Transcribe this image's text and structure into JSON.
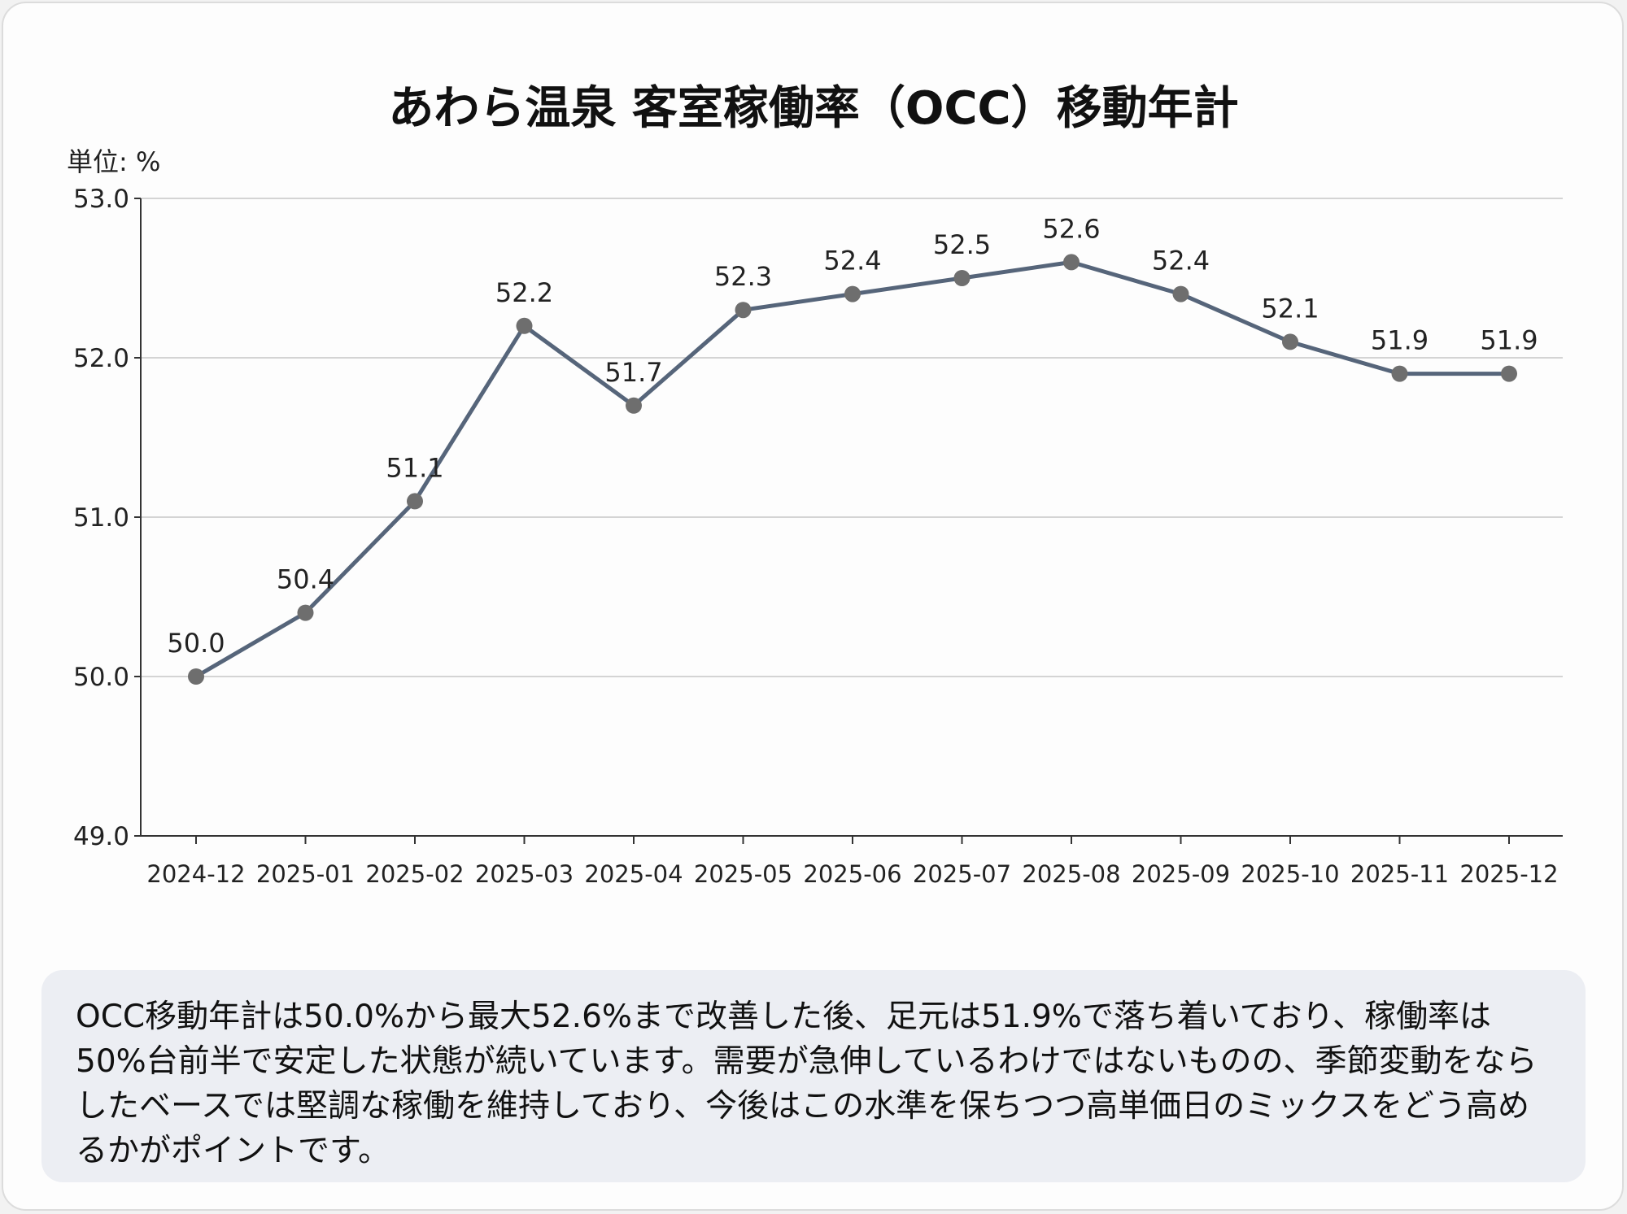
{
  "chart_data": {
    "type": "line",
    "title": "あわら温泉 客室稼働率（OCC）移動年計",
    "unit_label": "単位: %",
    "categories": [
      "2024-12",
      "2025-01",
      "2025-02",
      "2025-03",
      "2025-04",
      "2025-05",
      "2025-06",
      "2025-07",
      "2025-08",
      "2025-09",
      "2025-10",
      "2025-11",
      "2025-12"
    ],
    "values": [
      50.0,
      50.4,
      51.1,
      52.2,
      51.7,
      52.3,
      52.4,
      52.5,
      52.6,
      52.4,
      52.1,
      51.9,
      51.9
    ],
    "data_labels": [
      "50.0",
      "50.4",
      "51.1",
      "52.2",
      "51.7",
      "52.3",
      "52.4",
      "52.5",
      "52.6",
      "52.4",
      "52.1",
      "51.9",
      "51.9"
    ],
    "ylim": [
      49.0,
      53.0
    ],
    "yticks": [
      "49.0",
      "50.0",
      "51.0",
      "52.0",
      "53.0"
    ],
    "grid": true,
    "line_color": "#56657a",
    "marker_color": "#6e6e6e"
  },
  "note": "OCC移動年計は50.0%から最大52.6%まで改善した後、足元は51.9%で落ち着いており、稼働率は50%台前半で安定した状態が続いています。需要が急伸しているわけではないものの、季節変動をならしたベースでは堅調な稼働を維持しており、今後はこの水準を保ちつつ高単価日のミックスをどう高めるかがポイントです。"
}
